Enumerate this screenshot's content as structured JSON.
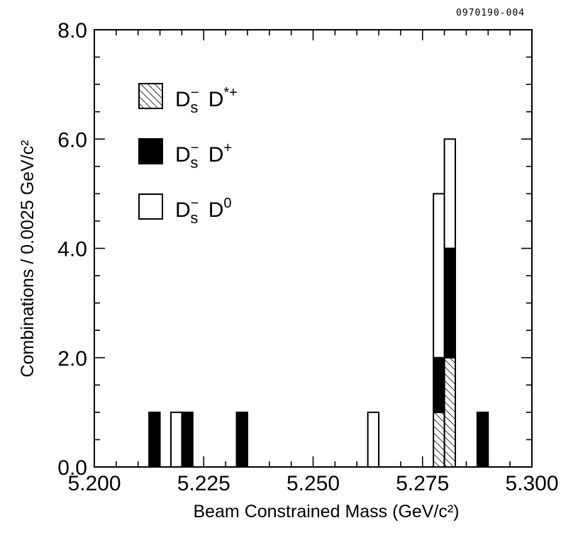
{
  "figure_id": "0970190-004",
  "chart_data": {
    "type": "bar",
    "stacked": true,
    "xlabel": "Beam Constrained Mass (GeV/c²)",
    "ylabel": "Combinations / 0.0025 GeV/c²",
    "xlim": [
      5.2,
      5.3
    ],
    "ylim": [
      0.0,
      8.0
    ],
    "xticks": [
      "5.200",
      "5.225",
      "5.250",
      "5.275",
      "5.300"
    ],
    "yticks": [
      "0.0",
      "2.0",
      "4.0",
      "6.0",
      "8.0"
    ],
    "x_minor_step": 0.005,
    "y_minor_step": 0.5,
    "bin_width": 0.0025,
    "grid": false,
    "legend_position": "top-left",
    "series": [
      {
        "name": "Ds- D*+",
        "label_main": "D",
        "label_sub": "s",
        "label_sup": "−",
        "label_second": "D",
        "label_second_sup": "*+",
        "fill": "hatched",
        "bins": [
          {
            "x_low": 5.2775,
            "count": 1
          },
          {
            "x_low": 5.28,
            "count": 2
          }
        ]
      },
      {
        "name": "Ds- D+",
        "label_main": "D",
        "label_sub": "s",
        "label_sup": "−",
        "label_second": "D",
        "label_second_sup": "+",
        "fill": "solid",
        "bins": [
          {
            "x_low": 5.2125,
            "count": 1
          },
          {
            "x_low": 5.22,
            "count": 1
          },
          {
            "x_low": 5.2325,
            "count": 1
          },
          {
            "x_low": 5.2775,
            "count": 1
          },
          {
            "x_low": 5.28,
            "count": 2
          },
          {
            "x_low": 5.2875,
            "count": 1
          }
        ]
      },
      {
        "name": "Ds- D0",
        "label_main": "D",
        "label_sub": "s",
        "label_sup": "−",
        "label_second": "D",
        "label_second_sup": "0",
        "fill": "open",
        "bins": [
          {
            "x_low": 5.2175,
            "count": 1
          },
          {
            "x_low": 5.2625,
            "count": 1
          },
          {
            "x_low": 5.2775,
            "count": 3
          },
          {
            "x_low": 5.28,
            "count": 2
          }
        ]
      }
    ]
  }
}
